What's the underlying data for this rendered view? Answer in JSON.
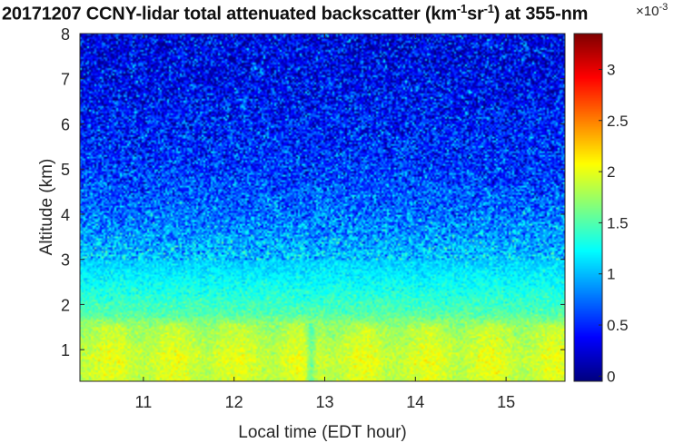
{
  "chart_data": {
    "type": "heatmap",
    "title": {
      "prefix": "20171207 CCNY-lidar total attenuated backscatter (km",
      "sup1": "-1",
      "mid": "sr",
      "sup2": "-1",
      "suffix": ") at 355-nm"
    },
    "xlabel": "Local time (EDT hour)",
    "ylabel": "Altitude (km)",
    "xlim": [
      10.3,
      15.65
    ],
    "ylim": [
      0.3,
      8.0
    ],
    "xticks": [
      11,
      12,
      13,
      14,
      15
    ],
    "yticks": [
      1,
      2,
      3,
      4,
      5,
      6,
      7,
      8
    ],
    "colorbar": {
      "ticks": [
        0,
        0.5,
        1,
        1.5,
        2,
        2.5,
        3
      ],
      "range": [
        -0.05,
        3.35
      ],
      "exponent_base": "10",
      "exponent": "-3",
      "colormap": "jet"
    },
    "profile": {
      "description_altitude_km": [
        0.3,
        0.8,
        1.5,
        1.8,
        2.2,
        2.6,
        3.0,
        3.5,
        4.0,
        5.0,
        6.0,
        7.0,
        8.0
      ],
      "description_mean_value": [
        1.9,
        1.95,
        1.8,
        1.5,
        1.35,
        1.2,
        1.05,
        0.9,
        0.75,
        0.55,
        0.45,
        0.35,
        0.3
      ]
    },
    "features": [
      {
        "name": "boundary layer top",
        "altitude_km": 1.6
      },
      {
        "name": "gap",
        "time_h": 12.85
      }
    ]
  }
}
